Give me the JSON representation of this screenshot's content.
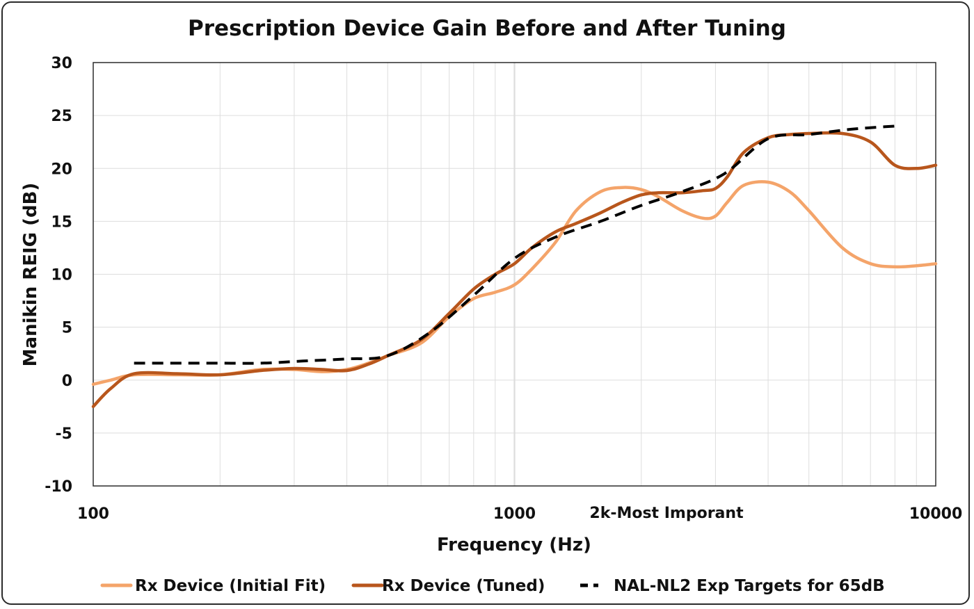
{
  "chart_data": {
    "type": "line",
    "title": "Prescription Device Gain Before and After Tuning",
    "xlabel": "Frequency (Hz)",
    "ylabel": "Manikin REIG (dB)",
    "xscale": "log",
    "xlim": [
      100,
      10000
    ],
    "ylim": [
      -10,
      30
    ],
    "yticks": [
      -10,
      -5,
      0,
      5,
      10,
      15,
      20,
      25,
      30
    ],
    "xtick_labels": [
      "100",
      "1000",
      "10000"
    ],
    "annotation": "2k-Most Imporant",
    "grid": true,
    "legend": "bottom",
    "series": [
      {
        "name": "Rx Device (Initial Fit)",
        "color": "#f4a46a",
        "dash": "solid",
        "x": [
          100,
          110,
          125,
          160,
          200,
          250,
          300,
          350,
          400,
          450,
          500,
          600,
          700,
          800,
          900,
          1000,
          1100,
          1250,
          1400,
          1600,
          1800,
          2000,
          2200,
          2500,
          2800,
          3000,
          3200,
          3500,
          4000,
          4500,
          5000,
          6000,
          7000,
          8000,
          9000,
          10000
        ],
        "y": [
          -0.4,
          0,
          0.5,
          0.5,
          0.5,
          1.0,
          1.0,
          0.8,
          1.0,
          1.6,
          2.3,
          3.5,
          6.0,
          7.7,
          8.3,
          9.0,
          10.5,
          13.0,
          16.0,
          17.8,
          18.2,
          18.0,
          17.3,
          16.0,
          15.3,
          15.5,
          16.8,
          18.4,
          18.7,
          17.8,
          16.0,
          12.5,
          11.0,
          10.7,
          10.8,
          11.0
        ]
      },
      {
        "name": "Rx Device (Tuned)",
        "color": "#b8561c",
        "dash": "solid",
        "x": [
          100,
          110,
          125,
          160,
          200,
          250,
          300,
          350,
          400,
          450,
          500,
          600,
          700,
          800,
          900,
          1000,
          1100,
          1250,
          1400,
          1600,
          1800,
          2000,
          2200,
          2500,
          2800,
          3000,
          3200,
          3500,
          4000,
          4500,
          5000,
          6000,
          7000,
          8000,
          9000,
          10000
        ],
        "y": [
          -2.5,
          -0.8,
          0.6,
          0.6,
          0.5,
          0.9,
          1.1,
          1.0,
          0.9,
          1.5,
          2.3,
          3.8,
          6.3,
          8.6,
          10.0,
          11.0,
          12.5,
          14.0,
          14.8,
          15.8,
          16.8,
          17.5,
          17.7,
          17.7,
          17.9,
          18.1,
          19.2,
          21.5,
          22.9,
          23.2,
          23.3,
          23.3,
          22.5,
          20.3,
          20.0,
          20.3
        ]
      },
      {
        "name": "NAL-NL2 Exp Targets for 65dB",
        "color": "#000000",
        "dash": "dashed",
        "x": [
          125,
          160,
          200,
          250,
          315,
          400,
          500,
          630,
          800,
          1000,
          1250,
          1600,
          2000,
          2500,
          3150,
          4000,
          5000,
          6300,
          8000
        ],
        "y": [
          1.6,
          1.6,
          1.6,
          1.6,
          1.8,
          2.0,
          2.3,
          4.5,
          8.0,
          11.5,
          13.5,
          15.0,
          16.5,
          17.8,
          19.5,
          22.8,
          23.2,
          23.7,
          24.0
        ]
      }
    ]
  }
}
